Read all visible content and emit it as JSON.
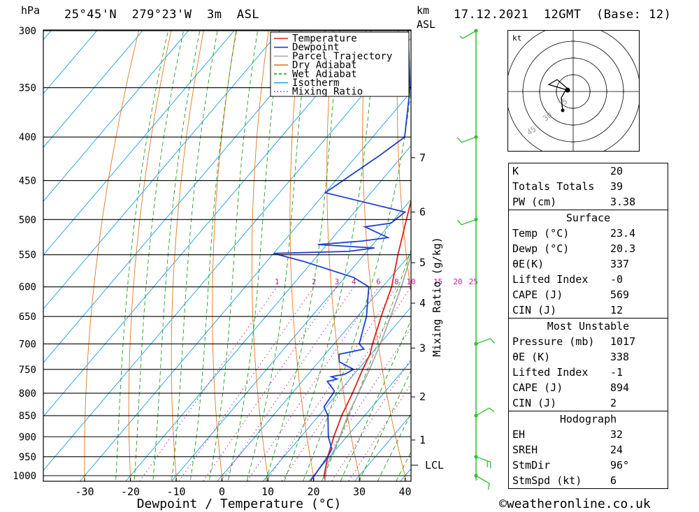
{
  "header": {
    "unit_left": "hPa",
    "location": "25°45'N  279°23'W  3m  ASL",
    "unit_km": "km",
    "unit_asl": "ASL",
    "datetime": "17.12.2021  12GMT  (Base: 12)"
  },
  "footer": {
    "copyright": "©weatheronline.co.uk"
  },
  "chart_data": {
    "type": "line",
    "xlabel": "Dewpoint / Temperature (°C)",
    "ylabel_right": "Mixing Ratio (g/kg)",
    "pressure_levels": [
      300,
      350,
      400,
      450,
      500,
      550,
      600,
      650,
      700,
      750,
      800,
      850,
      900,
      950,
      1000
    ],
    "x_ticks": [
      -30,
      -20,
      -10,
      0,
      10,
      20,
      30,
      40
    ],
    "km_ticks": [
      {
        "label": "7",
        "p": 423
      },
      {
        "label": "6",
        "p": 490
      },
      {
        "label": "5",
        "p": 562
      },
      {
        "label": "4",
        "p": 627
      },
      {
        "label": "3",
        "p": 708
      },
      {
        "label": "2",
        "p": 808
      },
      {
        "label": "1",
        "p": 908
      }
    ],
    "lcl_label": "LCL",
    "lcl_p": 972,
    "mixing_ratio_labels": [
      "1",
      "2",
      "3",
      "4",
      "6",
      "8",
      "10",
      "15",
      "20",
      "25"
    ],
    "mixing_ratio_values": [
      1,
      2,
      3,
      4,
      6,
      8,
      10,
      15,
      20,
      25
    ],
    "legend": [
      "Temperature",
      "Dewpoint",
      "Parcel Trajectory",
      "Dry Adiabat",
      "Wet Adiabat",
      "Isotherm",
      "Mixing Ratio"
    ],
    "series": [
      {
        "name": "Temperature",
        "color": "#e02020",
        "points": [
          [
            1013,
            23.4
          ],
          [
            1000,
            22.3
          ],
          [
            950,
            19.6
          ],
          [
            900,
            17.2
          ],
          [
            850,
            15.0
          ],
          [
            800,
            13.2
          ],
          [
            750,
            11.0
          ],
          [
            720,
            9.8
          ],
          [
            700,
            8.4
          ],
          [
            650,
            5.2
          ],
          [
            600,
            2.0
          ],
          [
            550,
            -2.6
          ],
          [
            500,
            -7.3
          ],
          [
            450,
            -12.4
          ],
          [
            400,
            -19.6
          ],
          [
            350,
            -28.0
          ],
          [
            300,
            -38.5
          ]
        ]
      },
      {
        "name": "Dewpoint",
        "color": "#1f3fd6",
        "points": [
          [
            1013,
            20.3
          ],
          [
            950,
            19.6
          ],
          [
            930,
            19.0
          ],
          [
            900,
            16.0
          ],
          [
            850,
            12.0
          ],
          [
            830,
            9.5
          ],
          [
            800,
            9.0
          ],
          [
            795,
            8.8
          ],
          [
            775,
            5.5
          ],
          [
            770,
            7.2
          ],
          [
            765,
            5.5
          ],
          [
            760,
            8.0
          ],
          [
            750,
            9.0
          ],
          [
            735,
            4.5
          ],
          [
            720,
            3.0
          ],
          [
            710,
            7.5
          ],
          [
            700,
            5.5
          ],
          [
            650,
            2.0
          ],
          [
            600,
            -3.0
          ],
          [
            585,
            -8.0
          ],
          [
            560,
            -22.0
          ],
          [
            548,
            -30.0
          ],
          [
            545,
            -14.0
          ],
          [
            540,
            -9.0
          ],
          [
            535,
            -22.0
          ],
          [
            530,
            -13.0
          ],
          [
            525,
            -8.0
          ],
          [
            510,
            -15.0
          ],
          [
            505,
            -10.0
          ],
          [
            490,
            -9.0
          ],
          [
            465,
            -30.0
          ],
          [
            420,
            -25.0
          ],
          [
            400,
            -23.0
          ],
          [
            350,
            -31.0
          ],
          [
            300,
            -42.0
          ]
        ]
      },
      {
        "name": "Parcel Trajectory",
        "color": "#aaaaaa",
        "points": [
          [
            1013,
            23.4
          ],
          [
            972,
            21.0
          ],
          [
            900,
            18.5
          ],
          [
            850,
            16.3
          ],
          [
            800,
            14.5
          ],
          [
            750,
            12.5
          ],
          [
            700,
            10.1
          ],
          [
            650,
            7.3
          ],
          [
            600,
            4.1
          ],
          [
            550,
            0.3
          ],
          [
            500,
            -4.6
          ],
          [
            450,
            -10.7
          ],
          [
            400,
            -18.2
          ],
          [
            350,
            -27.4
          ],
          [
            300,
            -38.3
          ]
        ]
      }
    ],
    "wind_barbs": [
      {
        "p": 1000,
        "speed_kt": 10,
        "dir_deg": 120
      },
      {
        "p": 950,
        "speed_kt": 15,
        "dir_deg": 110
      },
      {
        "p": 850,
        "speed_kt": 10,
        "dir_deg": 60
      },
      {
        "p": 700,
        "speed_kt": 10,
        "dir_deg": 70
      },
      {
        "p": 500,
        "speed_kt": 10,
        "dir_deg": 250
      },
      {
        "p": 400,
        "speed_kt": 10,
        "dir_deg": 250
      },
      {
        "p": 300,
        "speed_kt": 5,
        "dir_deg": 240
      }
    ],
    "hodograph": {
      "unit": "kt",
      "ring_labels": [
        "15",
        "30",
        "45"
      ]
    }
  },
  "indices": [
    {
      "label": "K",
      "value": "20"
    },
    {
      "label": "Totals Totals",
      "value": "39"
    },
    {
      "label": "PW (cm)",
      "value": "3.38"
    }
  ],
  "surface": {
    "title": "Surface",
    "rows": [
      {
        "label": "Temp (°C)",
        "value": "23.4"
      },
      {
        "label": "Dewp (°C)",
        "value": "20.3"
      },
      {
        "label": "θE(K)",
        "value": "337"
      },
      {
        "label": "Lifted Index",
        "value": "-0"
      },
      {
        "label": "CAPE (J)",
        "value": "569"
      },
      {
        "label": "CIN (J)",
        "value": "12"
      }
    ]
  },
  "most_unstable": {
    "title": "Most Unstable",
    "rows": [
      {
        "label": "Pressure (mb)",
        "value": "1017"
      },
      {
        "label": "θE (K)",
        "value": "338"
      },
      {
        "label": "Lifted Index",
        "value": "-1"
      },
      {
        "label": "CAPE (J)",
        "value": "894"
      },
      {
        "label": "CIN (J)",
        "value": "2"
      }
    ]
  },
  "hodograph_table": {
    "title": "Hodograph",
    "rows": [
      {
        "label": "EH",
        "value": "32"
      },
      {
        "label": "SREH",
        "value": "24"
      },
      {
        "label": "StmDir",
        "value": "96°"
      },
      {
        "label": "StmSpd (kt)",
        "value": "6"
      }
    ]
  },
  "colors": {
    "dry_adiabat": "#e07a20",
    "wet_adiabat": "#20a020",
    "isotherm": "#1aa0e0",
    "mixing_ratio": "#c020a0",
    "wind_profile": "#30c030"
  }
}
